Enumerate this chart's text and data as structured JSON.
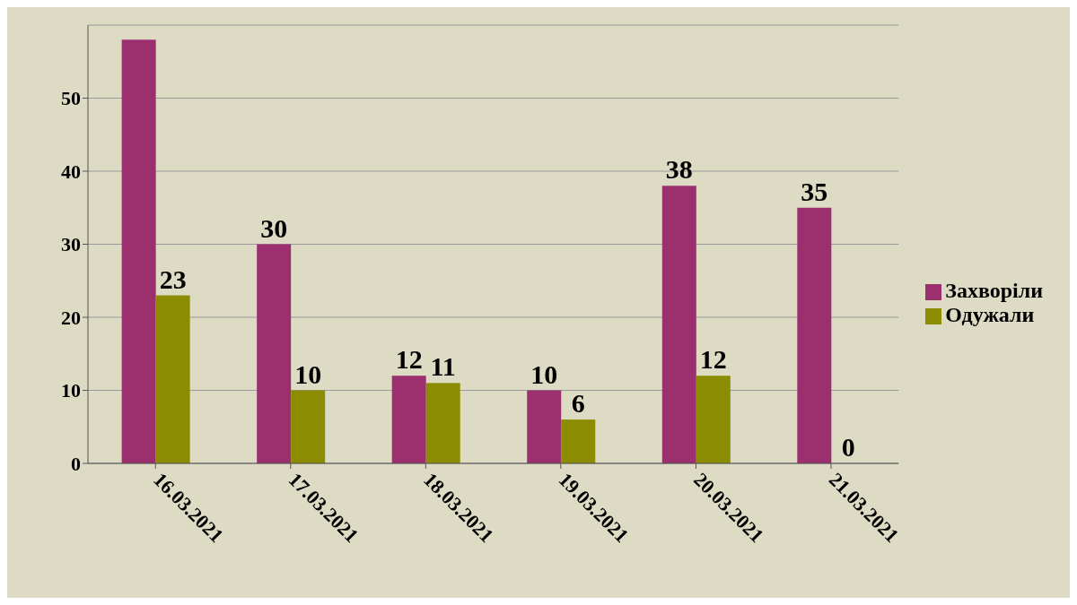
{
  "chart_data": {
    "type": "bar",
    "categories": [
      "16.03.2021",
      "17.03.2021",
      "18.03.2021",
      "19.03.2021",
      "20.03.2021",
      "21.03.2021"
    ],
    "series": [
      {
        "name": "Захворіли",
        "color": "#9c2f6e",
        "values": [
          58,
          30,
          12,
          10,
          38,
          35
        ],
        "value_labels": [
          null,
          "30",
          "12",
          "10",
          "38",
          "35"
        ]
      },
      {
        "name": "Одужали",
        "color": "#8c8c00",
        "values": [
          23,
          10,
          11,
          6,
          12,
          0
        ],
        "value_labels": [
          "23",
          "10",
          "11",
          "6",
          "12",
          "0"
        ]
      }
    ],
    "ylim": [
      0,
      60
    ],
    "yticks": [
      0,
      10,
      20,
      30,
      40,
      50
    ],
    "grid": "y",
    "legend": "right"
  }
}
